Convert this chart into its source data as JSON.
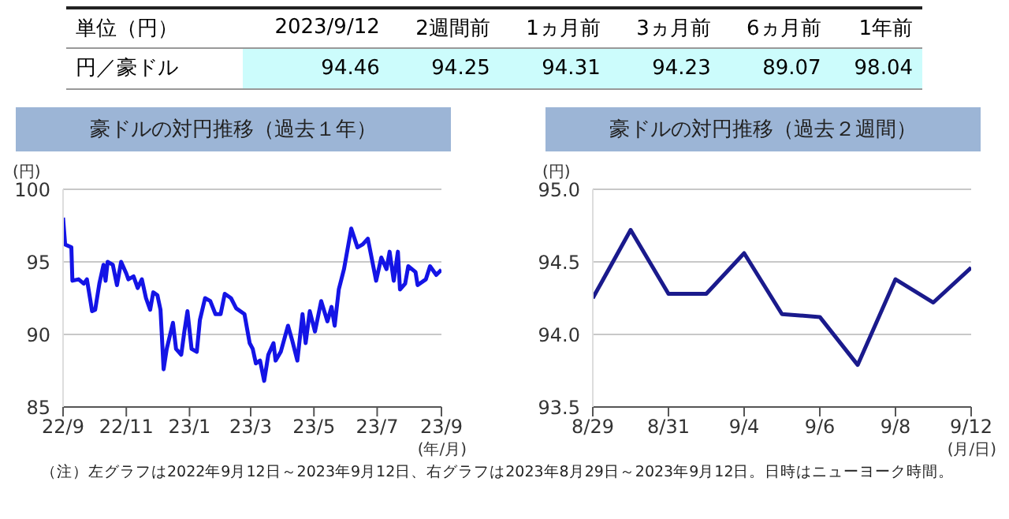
{
  "chart_data": [
    {
      "type": "other",
      "title": "単位（円）",
      "ylabel": "円／豪ドル",
      "categories": [
        "2023/9/12",
        "2週間前",
        "1ヵ月前",
        "3ヵ月前",
        "6ヵ月前",
        "1年前"
      ],
      "values": [
        94.46,
        94.25,
        94.31,
        94.23,
        89.07,
        98.04
      ],
      "data_labels": true,
      "color": "#ccfcfc"
    },
    {
      "type": "line",
      "title": "豪ドルの対円推移（過去１年）",
      "ylabel": "(円)",
      "xlabel": "(年/月)",
      "x": [
        "2022-09-12",
        "2022-09-14",
        "2022-09-20",
        "2022-09-21",
        "2022-09-27",
        "2022-10-02",
        "2022-10-05",
        "2022-10-08",
        "2022-10-10",
        "2022-10-13",
        "2022-10-17",
        "2022-10-21",
        "2022-10-23",
        "2022-10-25",
        "2022-10-30",
        "2022-11-03",
        "2022-11-07",
        "2022-11-12",
        "2022-11-14",
        "2022-11-19",
        "2022-11-23",
        "2022-11-27",
        "2022-12-01",
        "2022-12-05",
        "2022-12-08",
        "2022-12-12",
        "2022-12-15",
        "2022-12-18",
        "2022-12-21",
        "2022-12-27",
        "2022-12-30",
        "2023-01-04",
        "2023-01-07",
        "2023-01-10",
        "2023-01-14",
        "2023-01-19",
        "2023-01-22",
        "2023-01-27",
        "2023-02-01",
        "2023-02-06",
        "2023-02-11",
        "2023-02-15",
        "2023-02-21",
        "2023-02-26",
        "2023-03-06",
        "2023-03-11",
        "2023-03-14",
        "2023-03-17",
        "2023-03-21",
        "2023-03-25",
        "2023-03-29",
        "2023-04-03",
        "2023-04-05",
        "2023-04-10",
        "2023-04-17",
        "2023-04-21",
        "2023-04-26",
        "2023-05-01",
        "2023-05-04",
        "2023-05-08",
        "2023-05-13",
        "2023-05-19",
        "2023-05-25",
        "2023-05-29",
        "2023-06-01",
        "2023-06-05",
        "2023-06-10",
        "2023-06-17",
        "2023-06-23",
        "2023-06-28",
        "2023-07-03",
        "2023-07-11",
        "2023-07-16",
        "2023-07-21",
        "2023-07-24",
        "2023-07-28",
        "2023-08-01",
        "2023-08-03",
        "2023-08-08",
        "2023-08-11",
        "2023-08-18",
        "2023-08-20",
        "2023-08-28",
        "2023-09-01",
        "2023-09-07",
        "2023-09-12"
      ],
      "series": [
        {
          "color": "#1414e6",
          "values": [
            98.04,
            96.2,
            96.0,
            93.7,
            93.8,
            93.5,
            93.8,
            92.5,
            91.6,
            91.7,
            93.5,
            94.8,
            93.7,
            95.0,
            94.8,
            93.4,
            95.0,
            94.2,
            93.8,
            94.0,
            93.2,
            93.8,
            92.5,
            91.7,
            92.9,
            92.7,
            91.7,
            87.6,
            89.0,
            90.8,
            89.0,
            88.6,
            90.2,
            91.6,
            89.0,
            88.8,
            91.0,
            92.5,
            92.3,
            91.4,
            91.4,
            92.8,
            92.5,
            91.8,
            91.4,
            89.4,
            89.0,
            88.0,
            88.2,
            86.8,
            88.6,
            89.4,
            88.2,
            88.8,
            90.6,
            89.6,
            88.2,
            91.4,
            89.4,
            91.6,
            90.2,
            92.3,
            90.9,
            91.9,
            90.6,
            93.1,
            94.5,
            97.3,
            96.0,
            96.2,
            96.6,
            93.7,
            95.3,
            94.5,
            95.7,
            93.7,
            95.7,
            93.1,
            93.5,
            94.7,
            94.3,
            93.4,
            93.8,
            94.7,
            94.1,
            94.46
          ]
        }
      ],
      "xlim": [
        "2022-09-12",
        "2023-09-12"
      ],
      "xticks": [
        {
          "value": "2022-09-12",
          "label": "22/9"
        },
        {
          "value": "2022-11-12",
          "label": "22/11"
        },
        {
          "value": "2023-01-12",
          "label": "23/1"
        },
        {
          "value": "2023-03-12",
          "label": "23/3"
        },
        {
          "value": "2023-05-12",
          "label": "23/5"
        },
        {
          "value": "2023-07-12",
          "label": "23/7"
        },
        {
          "value": "2023-09-12",
          "label": "23/9"
        }
      ],
      "ylim": [
        85,
        100
      ],
      "yticks": [
        85,
        90,
        95,
        100
      ],
      "grid": "y",
      "legend": false,
      "marker": "none",
      "line_style": "solid",
      "annotations": [
        "（注）左グラフは2022年9月12日～2023年9月12日、右グラフは2023年8月29日～2023年9月12日。日時はニューヨーク時間。"
      ]
    },
    {
      "type": "line",
      "title": "豪ドルの対円推移（過去２週間）",
      "ylabel": "(円)",
      "xlabel": "(月/日)",
      "categories": [
        "8/29",
        null,
        "8/31",
        null,
        "9/4",
        null,
        "9/6",
        null,
        "9/8",
        null,
        "9/12"
      ],
      "series": [
        {
          "color": "#1a1a8c",
          "values": [
            94.25,
            94.72,
            94.28,
            94.28,
            94.56,
            94.14,
            94.12,
            93.79,
            94.38,
            94.22,
            94.46
          ]
        }
      ],
      "ylim": [
        93.5,
        95.0
      ],
      "yticks": [
        {
          "value": 93.5,
          "label": "93.5"
        },
        {
          "value": 94.0,
          "label": "94.0"
        },
        {
          "value": 94.5,
          "label": "94.5"
        },
        {
          "value": 95.0,
          "label": "95.0"
        }
      ],
      "grid": "y",
      "legend": false,
      "marker": "none",
      "line_style": "solid"
    }
  ]
}
